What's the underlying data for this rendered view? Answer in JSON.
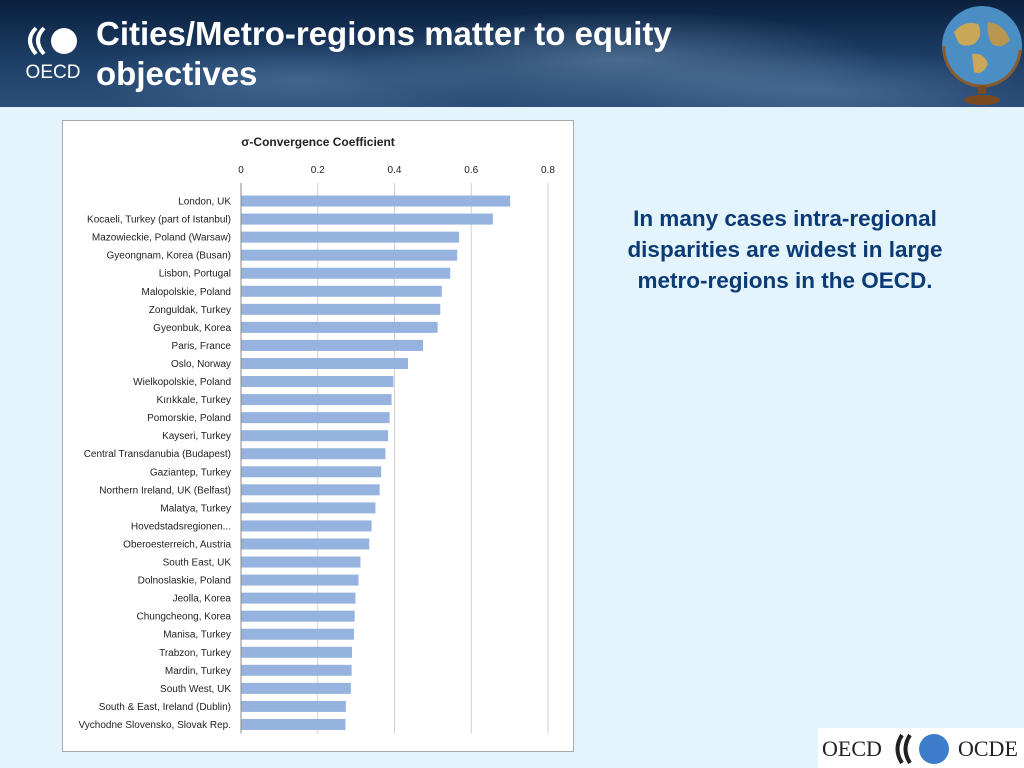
{
  "header": {
    "title": "Cities/Metro-regions matter to equity objectives",
    "logo_text": "OECD"
  },
  "side_text": "In many cases intra-regional disparities are widest  in large metro-regions in the OECD.",
  "footer": {
    "left_word": "OECD",
    "right_word": "OCDE"
  },
  "colors": {
    "bar": "#95b3de",
    "title_text": "#ffffff",
    "side_text": "#0b3a75"
  },
  "chart_data": {
    "type": "bar",
    "orientation": "horizontal",
    "title": "σ-Convergence Coefficient",
    "xlim": [
      0,
      0.8
    ],
    "ticks": [
      "0",
      "0.2",
      "0.4",
      "0.6",
      "0.8"
    ],
    "grid": true,
    "categories": [
      "London, UK",
      "Kocaeli, Turkey (part of Istanbul)",
      "Mazowieckie, Poland (Warsaw)",
      "Gyeongnam, Korea (Busan)",
      "Lisbon, Portugal",
      "Malopolskie, Poland",
      "Zonguldak, Turkey",
      "Gyeonbuk, Korea",
      "Paris, France",
      "Oslo, Norway",
      "Wielkopolskie, Poland",
      "Kırıkkale, Turkey",
      "Pomorskie, Poland",
      "Kayseri, Turkey",
      "Central Transdanubia (Budapest)",
      "Gaziantep, Turkey",
      "Northern Ireland, UK (Belfast)",
      "Malatya, Turkey",
      "Hovedstadsregionen...",
      "Oberoesterreich, Austria",
      "South East, UK",
      "Dolnoslaskie, Poland",
      "Jeolla, Korea",
      "Chungcheong, Korea",
      "Manisa, Turkey",
      "Trabzon, Turkey",
      "Mardin, Turkey",
      "South West, UK",
      "South & East, Ireland (Dublin)",
      "Vychodne Slovensko, Slovak Rep."
    ],
    "values": [
      0.7,
      0.655,
      0.567,
      0.562,
      0.544,
      0.522,
      0.518,
      0.511,
      0.473,
      0.434,
      0.396,
      0.391,
      0.386,
      0.382,
      0.375,
      0.364,
      0.36,
      0.349,
      0.339,
      0.333,
      0.31,
      0.305,
      0.297,
      0.295,
      0.293,
      0.288,
      0.287,
      0.285,
      0.272,
      0.271
    ]
  }
}
